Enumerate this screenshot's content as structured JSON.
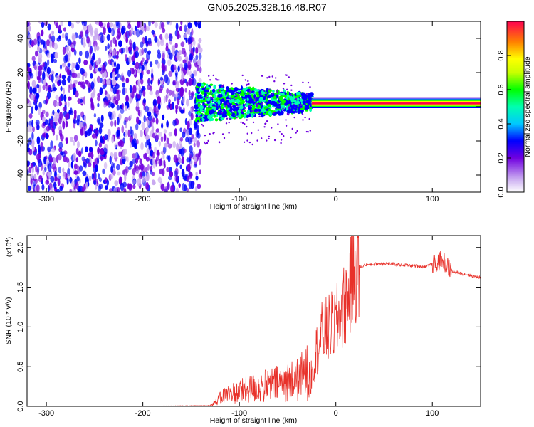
{
  "page": {
    "title": "GN05.2025.328.16.48.R07"
  },
  "chart_data": [
    {
      "type": "heatmap",
      "title": "GN05.2025.328.16.48.R07",
      "xlabel": "Height of straight line (km)",
      "ylabel": "Frequency (Hz)",
      "xlim": [
        -320,
        150
      ],
      "ylim": [
        -50,
        50
      ],
      "xticks": [
        -300,
        -200,
        -100,
        0,
        100
      ],
      "yticks": [
        -40,
        -20,
        0,
        20,
        40
      ],
      "regions": [
        {
          "name": "noise",
          "x": [
            -320,
            -140
          ],
          "freq": [
            -50,
            50
          ],
          "amplitude": 0.12
        },
        {
          "name": "mixed",
          "x": [
            -145,
            -25
          ],
          "freq": [
            -10,
            15
          ],
          "amplitude": 0.35
        },
        {
          "name": "tone",
          "x": [
            -25,
            150
          ],
          "freq": [
            0,
            4
          ],
          "amplitude": 0.95
        }
      ],
      "colorbar": {
        "label": "Normalized spectral amplitude",
        "range": [
          0.0,
          1.0
        ],
        "ticks": [
          "0.0",
          "0.2",
          "0.4",
          "0.6",
          "0.8"
        ]
      }
    },
    {
      "type": "line",
      "xlabel": "Height of straight line (km)",
      "ylabel": "SNR (10 * v/v)",
      "yscale_label": "(x10",
      "yscale_exp": "4",
      "xlim": [
        -320,
        150
      ],
      "ylim": [
        0,
        2.15
      ],
      "xticks": [
        -300,
        -200,
        -100,
        0,
        100
      ],
      "yticks": [
        "0.0",
        "0.5",
        "1.0",
        "1.5",
        "2.0"
      ],
      "series": [
        {
          "name": "SNR",
          "color": "#e8312a",
          "x": [
            -320,
            -200,
            -130,
            -115,
            -100,
            -80,
            -60,
            -40,
            -25,
            -15,
            0,
            10,
            20,
            30,
            50,
            70,
            90,
            105,
            110,
            120,
            150
          ],
          "y": [
            0.0,
            0.0,
            0.01,
            0.15,
            0.2,
            0.25,
            0.3,
            0.35,
            0.5,
            0.9,
            1.05,
            1.3,
            1.72,
            1.78,
            1.8,
            1.78,
            1.76,
            1.8,
            1.85,
            1.7,
            1.62
          ]
        }
      ]
    }
  ]
}
